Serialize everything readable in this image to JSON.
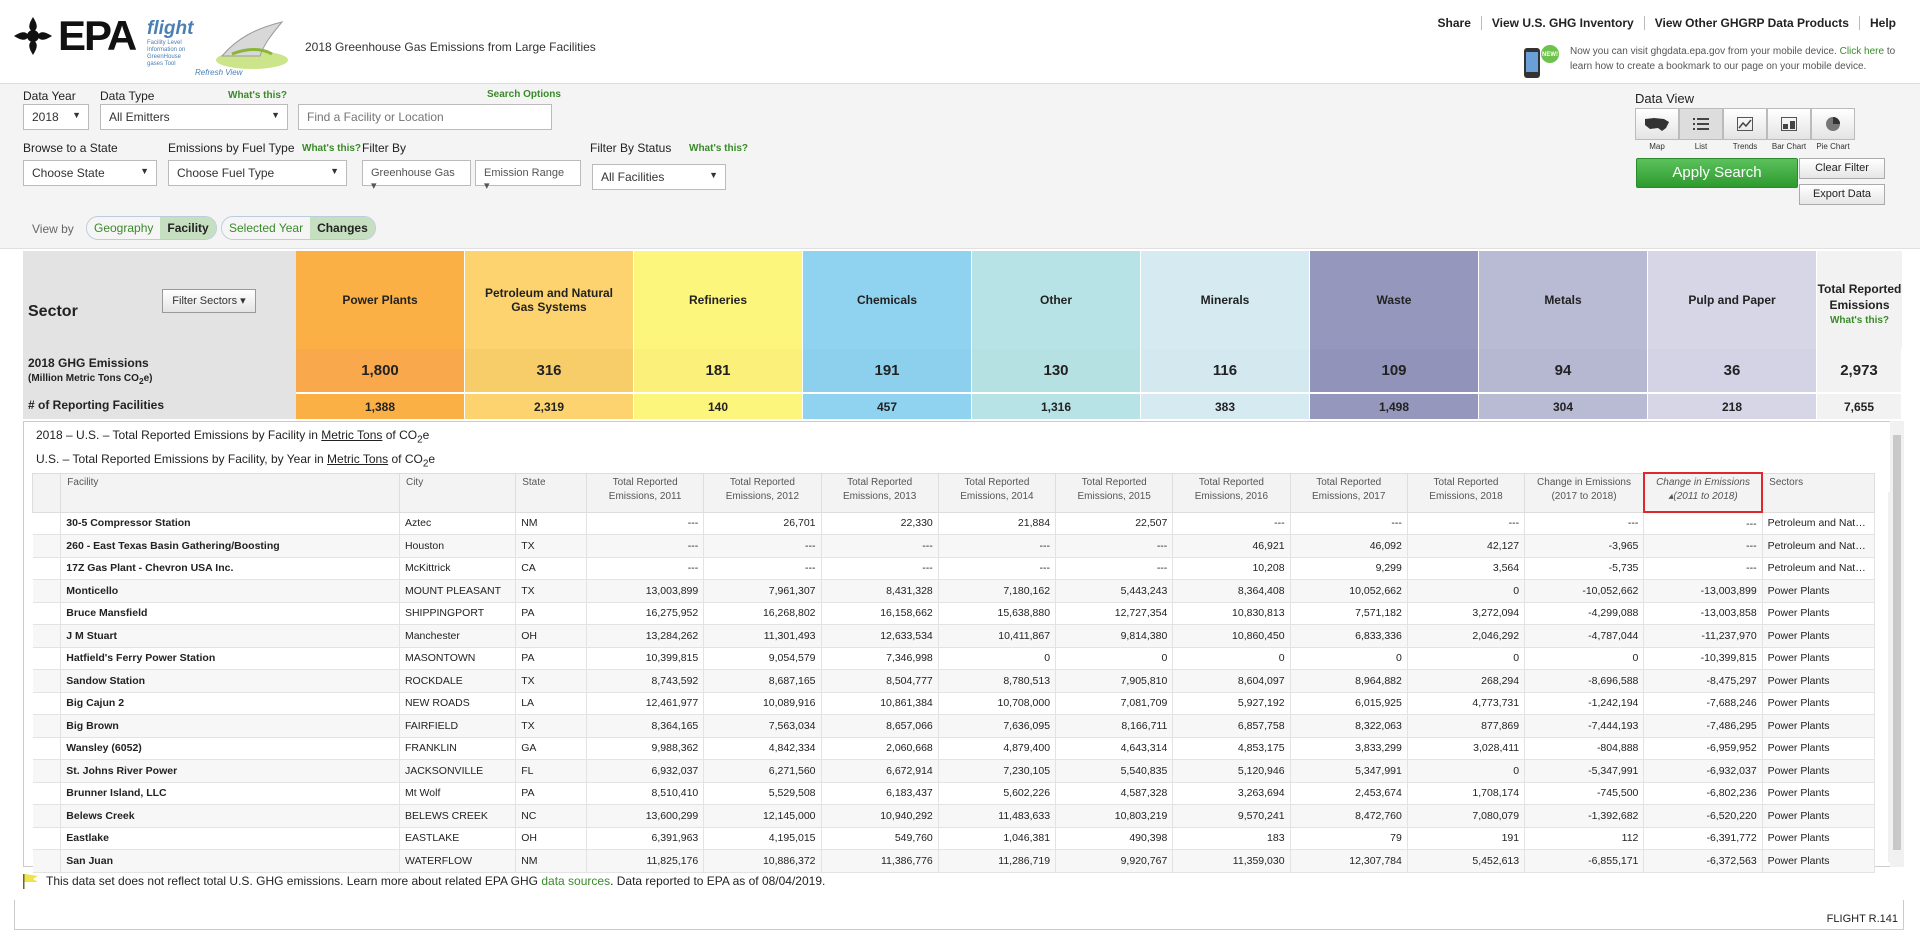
{
  "header": {
    "logo_text": "EPA",
    "flight_word": "flight",
    "flight_sub": "Facility Level Information on GreenHouse gases Tool",
    "refresh_link": "Refresh View",
    "page_title": "2018 Greenhouse Gas Emissions from Large Facilities",
    "nav": [
      "Share",
      "View U.S. GHG Inventory",
      "View Other GHGRP Data Products",
      "Help"
    ],
    "mobile_msg": "Now you can visit ghgdata.epa.gov from your mobile device. ",
    "mobile_link": "Click here",
    "mobile_msg2": " to learn how to create a bookmark to our page on your mobile device.",
    "new_badge": "NEW!"
  },
  "search": {
    "data_year_label": "Data Year",
    "data_year_value": "2018",
    "data_type_label": "Data Type",
    "whats_this": "What's this?",
    "data_type_value": "All Emitters",
    "search_options": "Search Options",
    "search_placeholder": "Find a Facility or Location",
    "browse_label": "Browse to a State",
    "state_value": "Choose State",
    "fuel_label": "Emissions by Fuel Type",
    "fuel_value": "Choose Fuel Type",
    "filter_by_label": "Filter By",
    "greenhouse_gas": "Greenhouse Gas",
    "emission_range": "Emission Range",
    "filter_status_label": "Filter By Status",
    "status_value": "All Facilities",
    "data_view_label": "Data View",
    "view_labels": [
      "Map",
      "List",
      "Trends",
      "Bar Chart",
      "Pie Chart"
    ],
    "view_icons": [
      "us-map-icon",
      "list-icon",
      "trends-icon",
      "bar-chart-icon",
      "pie-chart-icon"
    ],
    "apply_label": "Apply  Search",
    "clear_label": "Clear Filter",
    "export_label": "Export Data",
    "view_by_label": "View by",
    "toggle1": [
      "Geography",
      "Facility"
    ],
    "toggle2": [
      "Selected Year",
      "Changes"
    ]
  },
  "sectors": {
    "title": "Sector",
    "filter_button": "Filter Sectors",
    "emissions_label": "2018 GHG Emissions",
    "emissions_units_pre": "(Million Metric Tons CO",
    "emissions_units_post": "e)",
    "facilities_label": "# of Reporting Facilities",
    "whats_this": "What's this?",
    "items": [
      {
        "name": "Power Plants",
        "emissions": "1,800",
        "facilities": "1,388",
        "color": "#fbb045",
        "color2": "#f9a94b"
      },
      {
        "name": "Petroleum and Natural Gas Systems",
        "emissions": "316",
        "facilities": "2,319",
        "color": "#fcd36e",
        "color2": "#f7cd6a"
      },
      {
        "name": "Refineries",
        "emissions": "181",
        "facilities": "140",
        "color": "#fdf67d",
        "color2": "#fbf07a"
      },
      {
        "name": "Chemicals",
        "emissions": "191",
        "facilities": "457",
        "color": "#8fd3f0",
        "color2": "#8dd0ee"
      },
      {
        "name": "Other",
        "emissions": "130",
        "facilities": "1,316",
        "color": "#b8e3e6",
        "color2": "#b5e1e2"
      },
      {
        "name": "Minerals",
        "emissions": "116",
        "facilities": "383",
        "color": "#d5ebf1",
        "color2": "#d3e8ef"
      },
      {
        "name": "Waste",
        "emissions": "109",
        "facilities": "1,498",
        "color": "#9597bd",
        "color2": "#9193ba"
      },
      {
        "name": "Metals",
        "emissions": "94",
        "facilities": "304",
        "color": "#b9bad3",
        "color2": "#b6b7d1"
      },
      {
        "name": "Pulp and Paper",
        "emissions": "36",
        "facilities": "218",
        "color": "#d7d6e7",
        "color2": "#d4d3e5"
      }
    ],
    "total": {
      "name": "Total Reported Emissions",
      "emissions": "2,973",
      "facilities": "7,655"
    }
  },
  "table": {
    "caption1_pre": "2018 – U.S. – Total Reported Emissions by Facility in ",
    "caption_units": "Metric Tons",
    "caption_of": " of CO",
    "caption_e": "e",
    "caption2_pre": "U.S. – Total Reported Emissions by Facility, by Year in ",
    "columns": [
      "",
      "Facility",
      "City",
      "State",
      "Total Reported Emissions, 2011",
      "Total Reported Emissions, 2012",
      "Total Reported Emissions, 2013",
      "Total Reported Emissions, 2014",
      "Total Reported Emissions, 2015",
      "Total Reported Emissions, 2016",
      "Total Reported Emissions, 2017",
      "Total Reported Emissions, 2018",
      "Change in Emissions (2017 to 2018)",
      "Change in Emissions ▴(2011 to 2018)",
      "Sectors"
    ],
    "rows": [
      [
        "30-5 Compressor Station",
        "Aztec",
        "NM",
        "---",
        "26,701",
        "22,330",
        "21,884",
        "22,507",
        "---",
        "---",
        "---",
        "---",
        "---",
        "Petroleum and Natur..."
      ],
      [
        "260 - East Texas Basin Gathering/Boosting",
        "Houston",
        "TX",
        "---",
        "---",
        "---",
        "---",
        "---",
        "46,921",
        "46,092",
        "42,127",
        "-3,965",
        "---",
        "Petroleum and Natur..."
      ],
      [
        "17Z Gas Plant - Chevron USA Inc.",
        "McKittrick",
        "CA",
        "---",
        "---",
        "---",
        "---",
        "---",
        "10,208",
        "9,299",
        "3,564",
        "-5,735",
        "---",
        "Petroleum and Natur..."
      ],
      [
        "Monticello",
        "MOUNT PLEASANT",
        "TX",
        "13,003,899",
        "7,961,307",
        "8,431,328",
        "7,180,162",
        "5,443,243",
        "8,364,408",
        "10,052,662",
        "0",
        "-10,052,662",
        "-13,003,899",
        "Power Plants"
      ],
      [
        "Bruce Mansfield",
        "SHIPPINGPORT",
        "PA",
        "16,275,952",
        "16,268,802",
        "16,158,662",
        "15,638,880",
        "12,727,354",
        "10,830,813",
        "7,571,182",
        "3,272,094",
        "-4,299,088",
        "-13,003,858",
        "Power Plants"
      ],
      [
        "J M Stuart",
        "Manchester",
        "OH",
        "13,284,262",
        "11,301,493",
        "12,633,534",
        "10,411,867",
        "9,814,380",
        "10,860,450",
        "6,833,336",
        "2,046,292",
        "-4,787,044",
        "-11,237,970",
        "Power Plants"
      ],
      [
        "Hatfield's Ferry Power Station",
        "MASONTOWN",
        "PA",
        "10,399,815",
        "9,054,579",
        "7,346,998",
        "0",
        "0",
        "0",
        "0",
        "0",
        "0",
        "-10,399,815",
        "Power Plants"
      ],
      [
        "Sandow Station",
        "ROCKDALE",
        "TX",
        "8,743,592",
        "8,687,165",
        "8,504,777",
        "8,780,513",
        "7,905,810",
        "8,604,097",
        "8,964,882",
        "268,294",
        "-8,696,588",
        "-8,475,297",
        "Power Plants"
      ],
      [
        "Big Cajun 2",
        "NEW ROADS",
        "LA",
        "12,461,977",
        "10,089,916",
        "10,861,384",
        "10,708,000",
        "7,081,709",
        "5,927,192",
        "6,015,925",
        "4,773,731",
        "-1,242,194",
        "-7,688,246",
        "Power Plants"
      ],
      [
        "Big Brown",
        "FAIRFIELD",
        "TX",
        "8,364,165",
        "7,563,034",
        "8,657,066",
        "7,636,095",
        "8,166,711",
        "6,857,758",
        "8,322,063",
        "877,869",
        "-7,444,193",
        "-7,486,295",
        "Power Plants"
      ],
      [
        "Wansley (6052)",
        "FRANKLIN",
        "GA",
        "9,988,362",
        "4,842,334",
        "2,060,668",
        "4,879,400",
        "4,643,314",
        "4,853,175",
        "3,833,299",
        "3,028,411",
        "-804,888",
        "-6,959,952",
        "Power Plants"
      ],
      [
        "St. Johns River Power",
        "JACKSONVILLE",
        "FL",
        "6,932,037",
        "6,271,560",
        "6,672,914",
        "7,230,105",
        "5,540,835",
        "5,120,946",
        "5,347,991",
        "0",
        "-5,347,991",
        "-6,932,037",
        "Power Plants"
      ],
      [
        "Brunner Island, LLC",
        "Mt Wolf",
        "PA",
        "8,510,410",
        "5,529,508",
        "6,183,437",
        "5,602,226",
        "4,587,328",
        "3,263,694",
        "2,453,674",
        "1,708,174",
        "-745,500",
        "-6,802,236",
        "Power Plants"
      ],
      [
        "Belews Creek",
        "BELEWS CREEK",
        "NC",
        "13,600,299",
        "12,145,000",
        "10,940,292",
        "11,483,633",
        "10,803,219",
        "9,570,241",
        "8,472,760",
        "7,080,079",
        "-1,392,682",
        "-6,520,220",
        "Power Plants"
      ],
      [
        "Eastlake",
        "EASTLAKE",
        "OH",
        "6,391,963",
        "4,195,015",
        "549,760",
        "1,046,381",
        "490,398",
        "183",
        "79",
        "191",
        "112",
        "-6,391,772",
        "Power Plants"
      ],
      [
        "San Juan",
        "WATERFLOW",
        "NM",
        "11,825,176",
        "10,886,372",
        "11,386,776",
        "11,286,719",
        "9,920,767",
        "11,359,030",
        "12,307,784",
        "5,452,613",
        "-6,855,171",
        "-6,372,563",
        "Power Plants"
      ]
    ]
  },
  "footer": {
    "note_pre": "This data set does not reflect total U.S. GHG emissions. Learn more about related EPA GHG ",
    "note_link": "data sources",
    "note_post": ". Data reported to EPA as of 08/04/2019.",
    "version": "FLIGHT R.141"
  }
}
